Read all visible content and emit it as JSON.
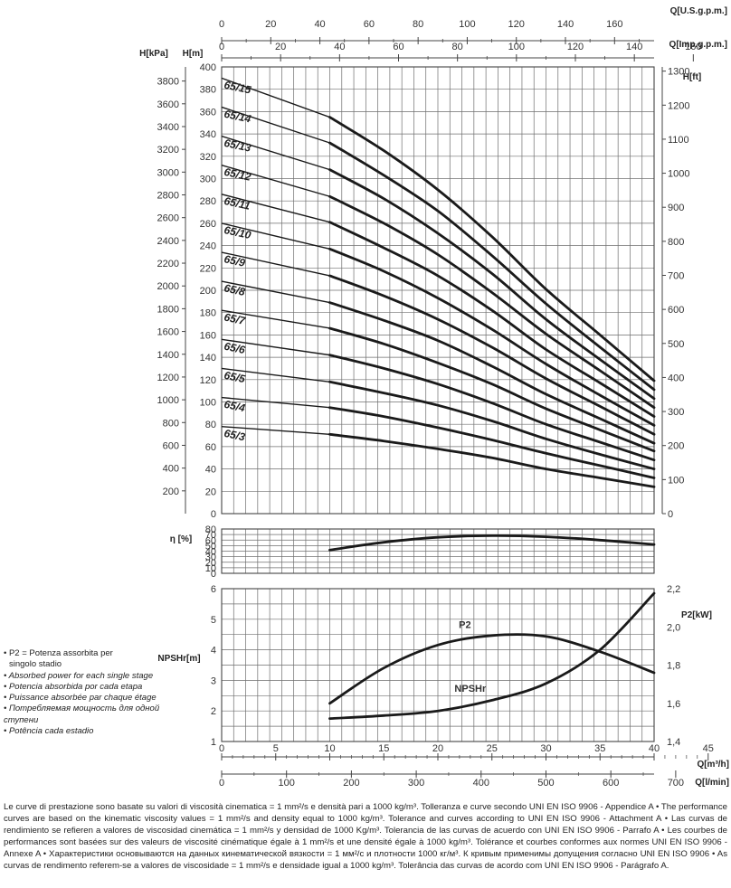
{
  "chart_data": [
    {
      "type": "line",
      "title": "",
      "flow_axes": {
        "usgpm": {
          "label": "Q[U.S.g.p.m.]",
          "ticks": [
            0,
            20,
            40,
            60,
            80,
            100,
            120,
            140,
            160
          ],
          "range": [
            0,
            176.1
          ]
        },
        "impgpm": {
          "label": "Q[Imp.g.p.m.]",
          "ticks": [
            0,
            20,
            40,
            60,
            80,
            100,
            120,
            140,
            160
          ],
          "range": [
            0,
            146.7
          ]
        },
        "m3h": {
          "label": "Q[m³/h]",
          "ticks": [
            0,
            5,
            10,
            15,
            20,
            25,
            30,
            35,
            40,
            45
          ],
          "range": [
            0,
            40
          ]
        },
        "lmin": {
          "label": "Q[l/min]",
          "ticks": [
            0,
            100,
            200,
            300,
            400,
            500,
            600,
            700
          ],
          "range": [
            0,
            666.7
          ]
        }
      },
      "ylabel_left": "H[m]",
      "ylabel_kpa": "H[kPa]",
      "ylabel_right": "H[ft]",
      "ylim": [
        0,
        400
      ],
      "y_ticks": [
        0,
        20,
        40,
        60,
        80,
        100,
        120,
        140,
        160,
        180,
        200,
        220,
        240,
        260,
        280,
        300,
        320,
        340,
        360,
        380,
        400
      ],
      "kpa_ticks": [
        200,
        400,
        600,
        800,
        1000,
        1200,
        1400,
        1600,
        1800,
        2000,
        2200,
        2400,
        2600,
        2800,
        3000,
        3200,
        3400,
        3600,
        3800
      ],
      "ft_ticks": [
        0,
        100,
        200,
        300,
        400,
        500,
        600,
        700,
        800,
        900,
        1000,
        1100,
        1200,
        1300
      ],
      "x_m3h": [
        0,
        10,
        15,
        20,
        25,
        30,
        35,
        40
      ],
      "series": [
        {
          "name": "65/15",
          "values": [
            390,
            355,
            325,
            290,
            248,
            201,
            160,
            119
          ]
        },
        {
          "name": "65/14",
          "values": [
            364,
            332,
            303,
            271,
            231,
            188,
            149,
            111
          ]
        },
        {
          "name": "65/13",
          "values": [
            338,
            308,
            282,
            251,
            215,
            174,
            138,
            103
          ]
        },
        {
          "name": "65/12",
          "values": [
            312,
            284,
            260,
            232,
            198,
            161,
            128,
            95
          ]
        },
        {
          "name": "65/11",
          "values": [
            286,
            261,
            238,
            213,
            182,
            147,
            117,
            87
          ]
        },
        {
          "name": "65/10",
          "values": [
            260,
            237,
            217,
            193,
            165,
            134,
            106,
            79
          ]
        },
        {
          "name": "65/9",
          "values": [
            234,
            213,
            195,
            174,
            149,
            121,
            96,
            71
          ]
        },
        {
          "name": "65/8",
          "values": [
            208,
            189,
            173,
            155,
            132,
            107,
            85,
            63
          ]
        },
        {
          "name": "65/7",
          "values": [
            182,
            166,
            152,
            135,
            116,
            94,
            75,
            56
          ]
        },
        {
          "name": "65/6",
          "values": [
            156,
            142,
            130,
            116,
            99,
            80,
            64,
            48
          ]
        },
        {
          "name": "65/5",
          "values": [
            130,
            118,
            108,
            97,
            83,
            67,
            53,
            40
          ]
        },
        {
          "name": "65/4",
          "values": [
            104,
            95,
            87,
            77,
            66,
            54,
            43,
            32
          ]
        },
        {
          "name": "65/3",
          "values": [
            78,
            71,
            65,
            58,
            50,
            40,
            32,
            24
          ]
        }
      ]
    },
    {
      "type": "line",
      "ylabel": "η [%]",
      "ylim": [
        0,
        80
      ],
      "y_ticks": [
        0,
        10,
        20,
        30,
        40,
        50,
        60,
        70,
        80
      ],
      "x_m3h": [
        10,
        15,
        20,
        25,
        30,
        35,
        40
      ],
      "values": [
        42,
        56,
        65,
        68,
        66,
        60,
        52
      ]
    },
    {
      "type": "line",
      "ylabel_left": "NPSHr[m]",
      "ylabel_right": "P2[kW]",
      "ylim_left": [
        1,
        6
      ],
      "ylim_right": [
        1.4,
        2.2
      ],
      "left_ticks": [
        1,
        2,
        3,
        4,
        5,
        6
      ],
      "right_ticks": [
        "1,4",
        "1,6",
        "1,8",
        "2,0",
        "2,2"
      ],
      "series": [
        {
          "name": "P2",
          "axis": "right",
          "x_m3h": [
            10,
            15,
            20,
            25,
            30,
            35,
            40
          ],
          "values": [
            1.6,
            1.785,
            1.905,
            1.955,
            1.95,
            1.87,
            1.76
          ]
        },
        {
          "name": "NPSHr",
          "axis": "left",
          "x_m3h": [
            10,
            15,
            20,
            25,
            30,
            35,
            40
          ],
          "values": [
            1.75,
            1.85,
            2.0,
            2.35,
            2.9,
            4.0,
            5.85
          ]
        }
      ]
    }
  ],
  "legend_lines": [
    "• P2 = Potenza assorbita per",
    "  singolo stadio",
    "• Absorbed power for each single stage",
    "• Potencia absorbida por cada etapa",
    "• Puissance absorbée par chaque étage",
    "• Потребляемая мощность для одной ступени",
    "• Potência cada estadio"
  ],
  "footnote": "Le curve di prestazione sono basate su valori di viscosità cinematica = 1 mm²/s e densità pari a 1000 kg/m³. Tolleranza e curve secondo UNI EN ISO 9906 - Appendice A • The performance curves are based on the kinematic viscosity values = 1 mm²/s and density equal to 1000 kg/m³. Tolerance and curves according to UNI EN ISO 9906 - Attachment A • Las curvas de rendimiento se refieren a valores de viscosidad cinemática = 1 mm²/s y densidad de 1000 Kg/m³. Tolerancia de las curvas de acuerdo con UNI EN ISO 9906 - Parrafo A • Les courbes de performances sont basées sur des valeurs de viscosité cinématique égale à 1 mm²/s et une densité égale à 1000 kg/m³. Tolérance et courbes conformes aux normes UNI EN ISO 9906 - Annexe A • Характеристики основываются на данных кинематической вязкости = 1 мм²/с и плотности 1000 кг/м³. К кривым применимы допущения согласно UNI EN ISO 9906 • As curvas de rendimento referem-se a valores de viscosidade = 1 mm²/s e densidade igual a 1000 kg/m³. Tolerância das curvas de acordo com UNI EN ISO 9906 - Parágrafo A."
}
